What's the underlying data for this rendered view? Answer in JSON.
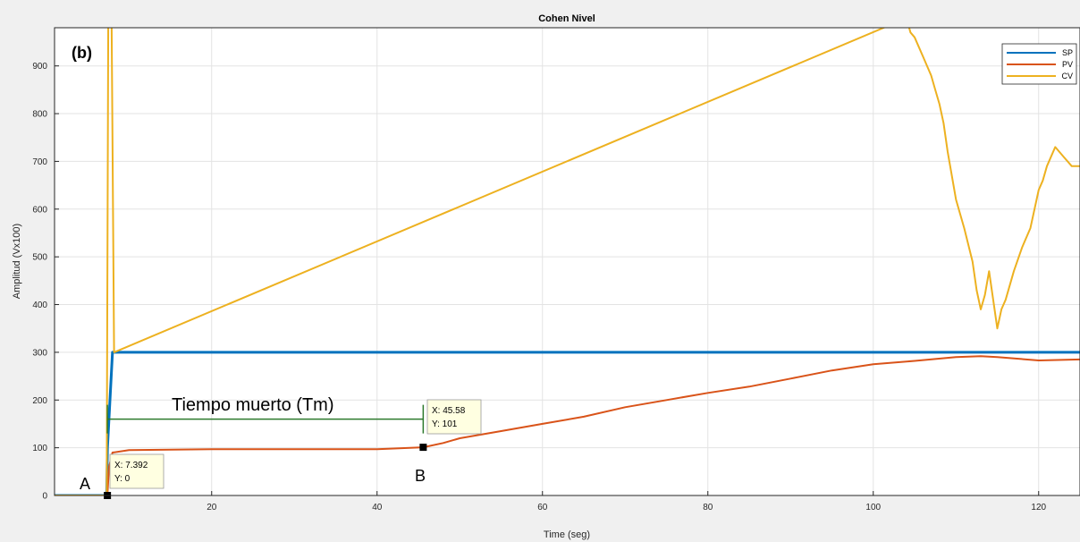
{
  "chart_data": {
    "type": "line",
    "title": "Cohen Nivel",
    "xlabel": "Time (seg)",
    "ylabel": "Amplitud (Vx100)",
    "xlim": [
      1,
      125
    ],
    "ylim": [
      0,
      980
    ],
    "xticks": [
      20,
      40,
      60,
      80,
      100,
      120
    ],
    "yticks": [
      0,
      100,
      200,
      300,
      400,
      500,
      600,
      700,
      800,
      900
    ],
    "grid": true,
    "legend_position": "top-right",
    "series": [
      {
        "name": "SP",
        "color": "#0072BD",
        "x": [
          1,
          7.3,
          7.4,
          8.0,
          125
        ],
        "y": [
          0,
          0,
          100,
          300,
          300
        ]
      },
      {
        "name": "PV",
        "color": "#D95319",
        "x": [
          1,
          7.39,
          7.6,
          8,
          10,
          15,
          20,
          25,
          30,
          35,
          40,
          45.58,
          48,
          50,
          55,
          60,
          65,
          70,
          75,
          80,
          85,
          90,
          95,
          100,
          105,
          110,
          113,
          115,
          120,
          125
        ],
        "y": [
          0,
          0,
          60,
          90,
          95,
          96,
          97,
          97,
          97,
          97,
          97,
          101,
          110,
          120,
          135,
          150,
          165,
          185,
          200,
          215,
          228,
          245,
          262,
          275,
          282,
          290,
          292,
          290,
          283,
          285
        ]
      },
      {
        "name": "CV",
        "color": "#EDB120",
        "x": [
          1,
          7.3,
          7.5,
          7.9,
          8.2,
          104,
          104.5,
          105,
          106,
          107,
          107.5,
          108,
          108.5,
          109,
          110,
          111,
          112,
          112.5,
          113,
          113.5,
          114,
          114.5,
          115,
          115.5,
          116,
          117,
          118,
          119,
          120,
          120.5,
          121,
          122,
          123,
          124,
          125
        ],
        "y": [
          0,
          0,
          1000,
          1000,
          300,
          1000,
          970,
          960,
          920,
          880,
          850,
          820,
          780,
          720,
          620,
          560,
          490,
          430,
          390,
          420,
          470,
          410,
          350,
          390,
          410,
          470,
          520,
          560,
          640,
          660,
          690,
          730,
          710,
          690,
          690
        ]
      }
    ],
    "annotations": {
      "panel_label": "(b)",
      "dead_time_label": "Tiempo muerto (Tm)",
      "dead_time_y": 160,
      "point_a": {
        "label": "A",
        "x": 7.392,
        "y": 0,
        "tip_x": "X: 7.392",
        "tip_y": "Y: 0"
      },
      "point_b": {
        "label": "B",
        "x": 45.58,
        "y": 101,
        "tip_x": "X: 45.58",
        "tip_y": "Y: 101"
      }
    }
  }
}
